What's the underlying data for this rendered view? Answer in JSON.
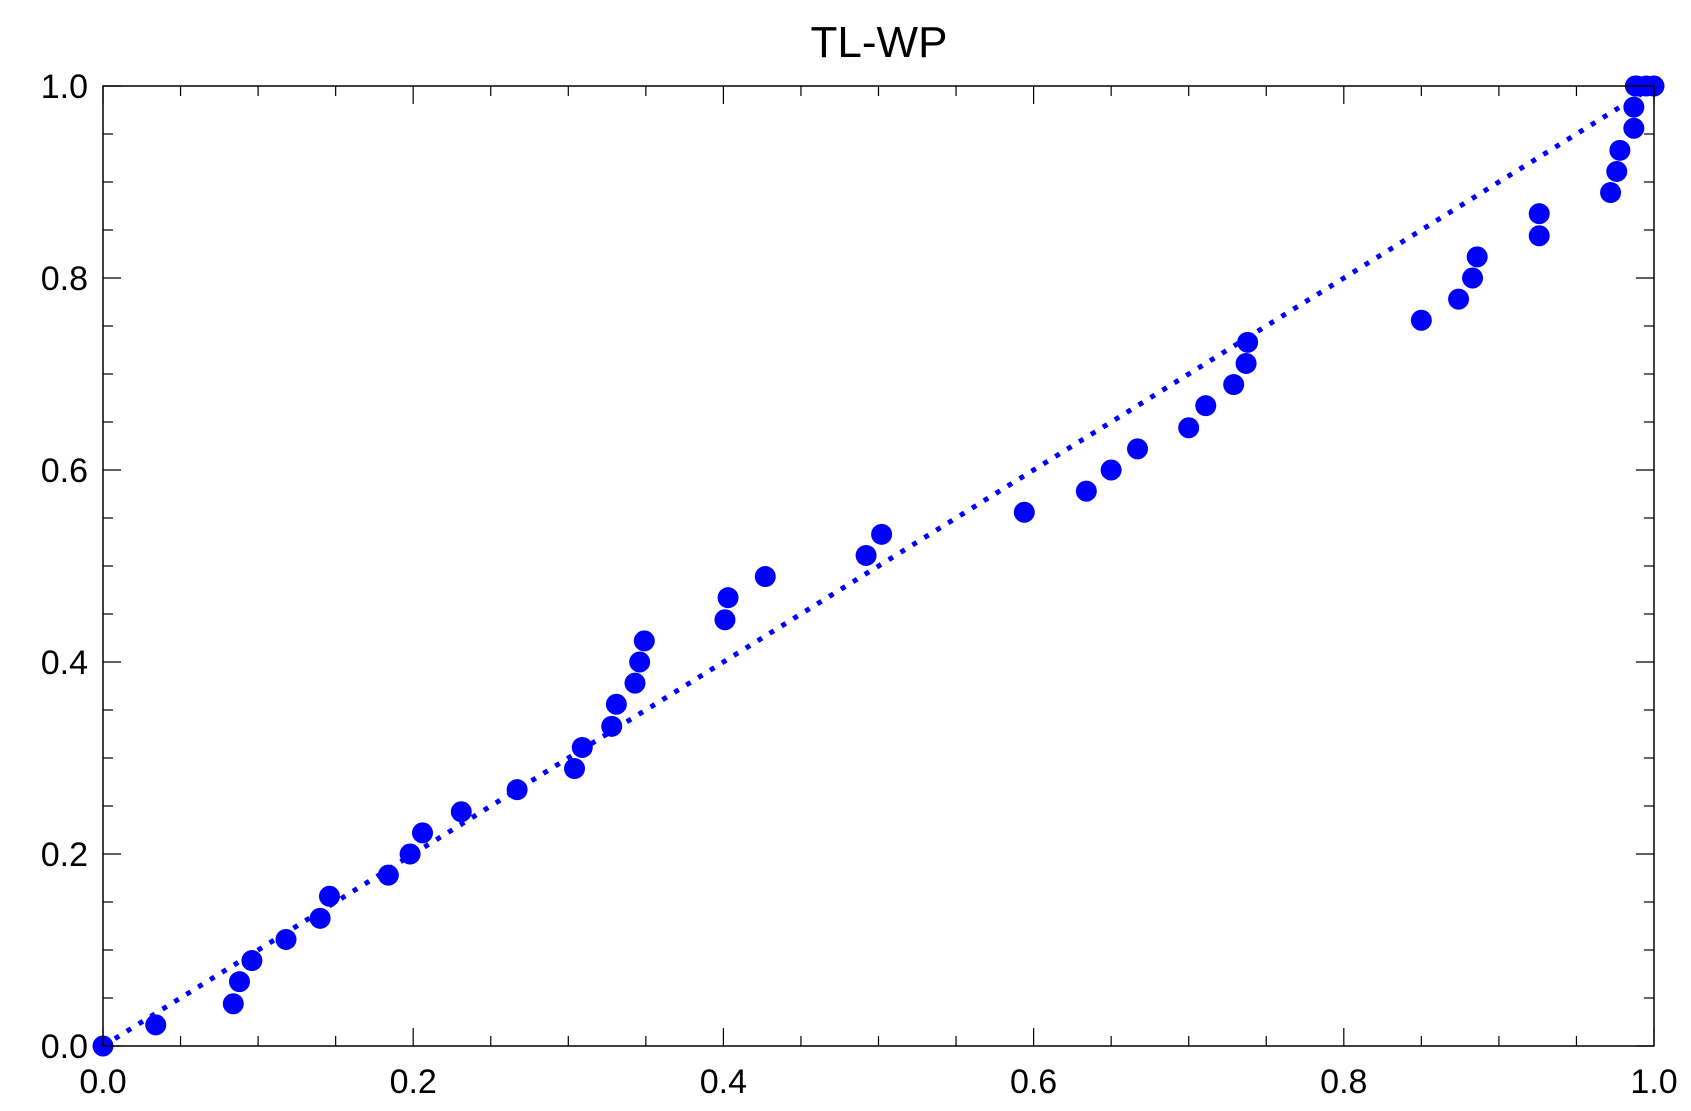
{
  "chart_data": {
    "type": "scatter",
    "title": "TL-WP",
    "xlabel": "",
    "ylabel": "",
    "xlim": [
      0.0,
      1.0
    ],
    "ylim": [
      0.0,
      1.0
    ],
    "x_ticks": [
      "0.0",
      "0.2",
      "0.4",
      "0.6",
      "0.8",
      "1.0"
    ],
    "y_ticks": [
      "0.0",
      "0.2",
      "0.4",
      "0.6",
      "0.8",
      "1.0"
    ],
    "grid": false,
    "colors": {
      "points": "#0000ff",
      "reference_line": "#0000ff",
      "axes": "#000000"
    },
    "reference_line": {
      "style": "dotted",
      "from": [
        0.0,
        0.0
      ],
      "to": [
        1.0,
        1.0
      ]
    },
    "series": [
      {
        "x": [
          0.0,
          0.034,
          0.084,
          0.088,
          0.096,
          0.118,
          0.14,
          0.146,
          0.184,
          0.198,
          0.206,
          0.231,
          0.267,
          0.304,
          0.309,
          0.328,
          0.331,
          0.343,
          0.346,
          0.349,
          0.401,
          0.403,
          0.427,
          0.492,
          0.502,
          0.594,
          0.634,
          0.65,
          0.667,
          0.7,
          0.711,
          0.729,
          0.737,
          0.738,
          0.85,
          0.874,
          0.883,
          0.886,
          0.926,
          0.926,
          0.972,
          0.976,
          0.978,
          0.987,
          0.987,
          0.988,
          0.989,
          0.995,
          1.0
        ],
        "y": [
          0.0,
          0.022,
          0.044,
          0.067,
          0.089,
          0.111,
          0.133,
          0.156,
          0.178,
          0.2,
          0.222,
          0.244,
          0.267,
          0.289,
          0.311,
          0.333,
          0.356,
          0.378,
          0.4,
          0.422,
          0.444,
          0.467,
          0.489,
          0.511,
          0.533,
          0.556,
          0.578,
          0.6,
          0.622,
          0.644,
          0.667,
          0.689,
          0.711,
          0.733,
          0.756,
          0.778,
          0.8,
          0.822,
          0.844,
          0.867,
          0.889,
          0.911,
          0.933,
          0.956,
          0.978,
          1.0,
          1.0,
          1.0,
          1.0
        ]
      }
    ]
  }
}
